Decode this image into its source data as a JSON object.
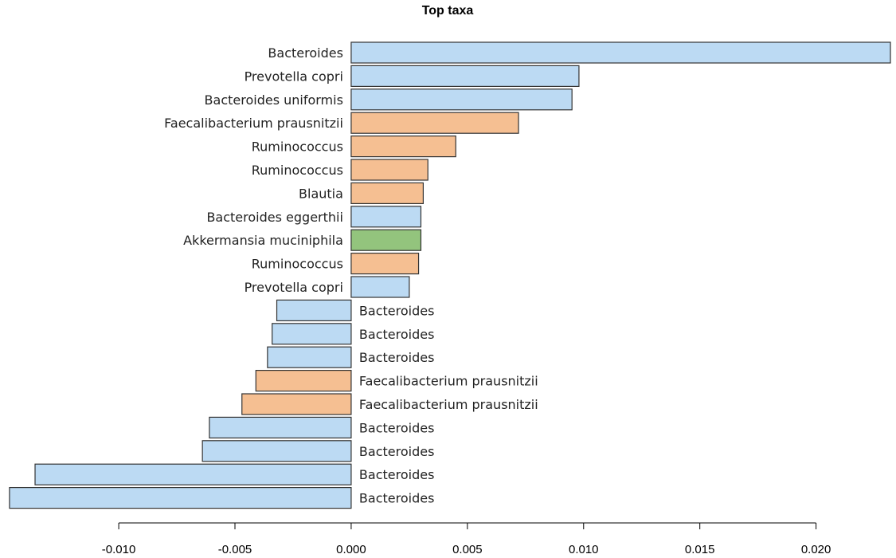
{
  "chart_data": {
    "type": "bar",
    "orientation": "horizontal",
    "title": "Top taxa",
    "xlabel": "",
    "ylabel": "",
    "xlim": [
      -0.0148,
      0.0232
    ],
    "xticks": [
      -0.01,
      -0.005,
      0.0,
      0.005,
      0.01,
      0.015,
      0.02
    ],
    "xtick_labels": [
      "-0.010",
      "-0.005",
      "0.000",
      "0.005",
      "0.010",
      "0.015",
      "0.020"
    ],
    "grid": false,
    "legend": "none",
    "colors": {
      "Bacteroidetes": "#bcdaf3",
      "Firmicutes": "#f5bf92",
      "Verrucomicrobia": "#93c47d",
      "outline": "#333333"
    },
    "bars": [
      {
        "label": "Bacteroides",
        "value": 0.0232,
        "color_group": "Bacteroidetes"
      },
      {
        "label": "Prevotella copri",
        "value": 0.0098,
        "color_group": "Bacteroidetes"
      },
      {
        "label": "Bacteroides uniformis",
        "value": 0.0095,
        "color_group": "Bacteroidetes"
      },
      {
        "label": "Faecalibacterium prausnitzii",
        "value": 0.0072,
        "color_group": "Firmicutes"
      },
      {
        "label": "Ruminococcus",
        "value": 0.0045,
        "color_group": "Firmicutes"
      },
      {
        "label": "Ruminococcus",
        "value": 0.0033,
        "color_group": "Firmicutes"
      },
      {
        "label": "Blautia",
        "value": 0.0031,
        "color_group": "Firmicutes"
      },
      {
        "label": "Bacteroides eggerthii",
        "value": 0.003,
        "color_group": "Bacteroidetes"
      },
      {
        "label": "Akkermansia muciniphila",
        "value": 0.003,
        "color_group": "Verrucomicrobia"
      },
      {
        "label": "Ruminococcus",
        "value": 0.0029,
        "color_group": "Firmicutes"
      },
      {
        "label": "Prevotella copri",
        "value": 0.0025,
        "color_group": "Bacteroidetes"
      },
      {
        "label": "Bacteroides",
        "value": -0.0032,
        "color_group": "Bacteroidetes"
      },
      {
        "label": "Bacteroides",
        "value": -0.0034,
        "color_group": "Bacteroidetes"
      },
      {
        "label": "Bacteroides",
        "value": -0.0036,
        "color_group": "Bacteroidetes"
      },
      {
        "label": "Faecalibacterium prausnitzii",
        "value": -0.0041,
        "color_group": "Firmicutes"
      },
      {
        "label": "Faecalibacterium prausnitzii",
        "value": -0.0047,
        "color_group": "Firmicutes"
      },
      {
        "label": "Bacteroides",
        "value": -0.0061,
        "color_group": "Bacteroidetes"
      },
      {
        "label": "Bacteroides",
        "value": -0.0064,
        "color_group": "Bacteroidetes"
      },
      {
        "label": "Bacteroides",
        "value": -0.0136,
        "color_group": "Bacteroidetes"
      },
      {
        "label": "Bacteroides",
        "value": -0.0147,
        "color_group": "Bacteroidetes"
      }
    ]
  }
}
